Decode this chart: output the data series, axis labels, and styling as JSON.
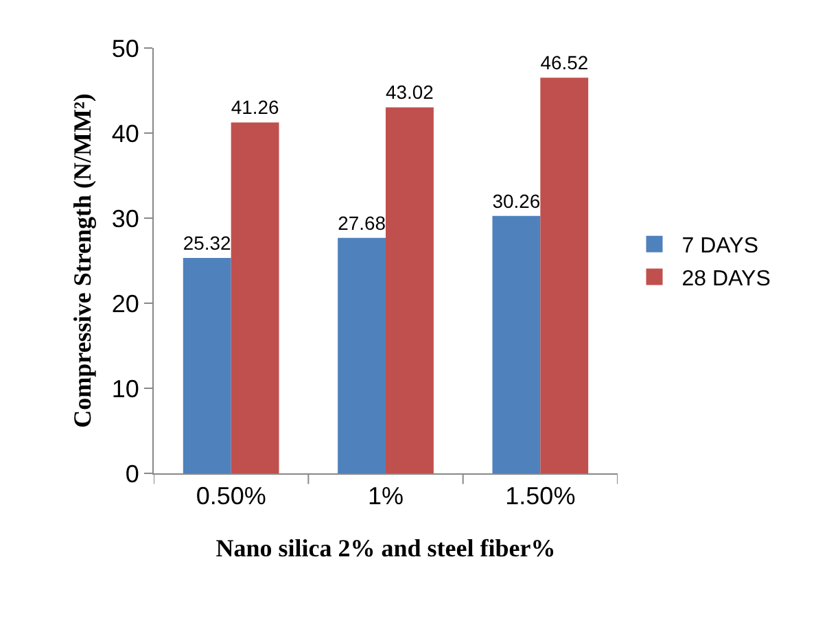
{
  "chart_data": {
    "type": "bar",
    "xlabel": "Nano silica 2% and steel fiber%",
    "ylabel": "Compressive Strength (N/MM²)",
    "categories": [
      "0.50%",
      "1%",
      "1.50%"
    ],
    "series": [
      {
        "name": "7 DAYS",
        "color": "#4f81bd",
        "values": [
          25.32,
          27.68,
          30.26
        ]
      },
      {
        "name": "28 DAYS",
        "color": "#c0504d",
        "values": [
          41.26,
          43.02,
          46.52
        ]
      }
    ],
    "ylim": [
      0,
      50
    ],
    "yticks": [
      0,
      10,
      20,
      30,
      40,
      50
    ],
    "grid": false,
    "legend": "right",
    "data_labels": true
  }
}
